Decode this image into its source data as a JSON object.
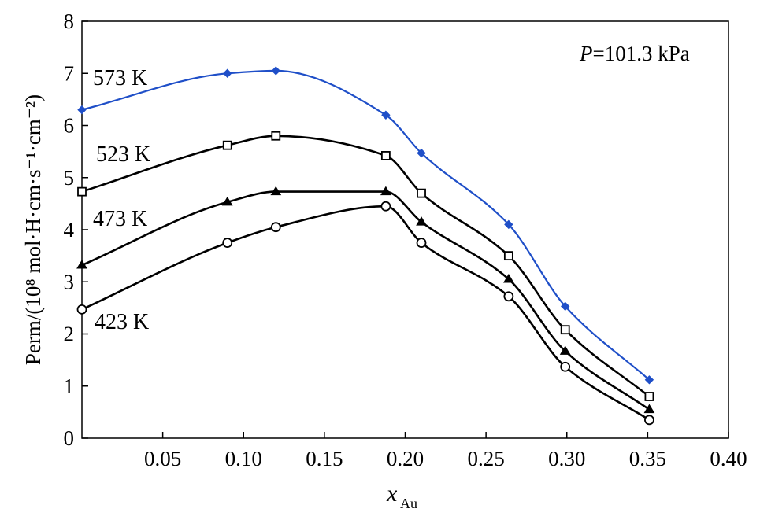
{
  "chart_data": {
    "type": "line",
    "xlabel": "x",
    "xlabel_sub": "Au",
    "ylabel": "Perm/(10⁸ mol·H·cm·s⁻¹·cm⁻²)",
    "xlim": [
      0,
      0.4
    ],
    "ylim": [
      0,
      8
    ],
    "x_ticks": [
      "0.05",
      "0.10",
      "0.15",
      "0.20",
      "0.25",
      "0.30",
      "0.35",
      "0.40"
    ],
    "x_tick_values": [
      0.05,
      0.1,
      0.15,
      0.2,
      0.25,
      0.3,
      0.35,
      0.4
    ],
    "y_ticks": [
      "0",
      "1",
      "2",
      "3",
      "4",
      "5",
      "6",
      "7",
      "8"
    ],
    "y_tick_values": [
      0,
      1,
      2,
      3,
      4,
      5,
      6,
      7,
      8
    ],
    "annotation": {
      "italic": "P",
      "text": "=101.3 kPa"
    },
    "grid": false,
    "x": [
      0.0,
      0.09,
      0.12,
      0.188,
      0.21,
      0.264,
      0.299,
      0.351
    ],
    "series": [
      {
        "name": "573 K",
        "color": "#1f4fc8",
        "marker": "diamond-filled",
        "values": [
          6.3,
          7.0,
          7.05,
          6.2,
          5.47,
          4.1,
          2.53,
          1.12
        ]
      },
      {
        "name": "523 K",
        "color": "#000000",
        "marker": "square-open",
        "values": [
          4.73,
          5.62,
          5.8,
          5.42,
          4.7,
          3.5,
          2.08,
          0.8
        ]
      },
      {
        "name": "473 K",
        "color": "#000000",
        "marker": "triangle-filled",
        "values": [
          3.32,
          4.53,
          4.73,
          4.73,
          4.15,
          3.05,
          1.67,
          0.55
        ]
      },
      {
        "name": "423 K",
        "color": "#000000",
        "marker": "circle-open",
        "values": [
          2.47,
          3.75,
          4.05,
          4.45,
          3.75,
          2.72,
          1.37,
          0.35
        ]
      }
    ]
  }
}
